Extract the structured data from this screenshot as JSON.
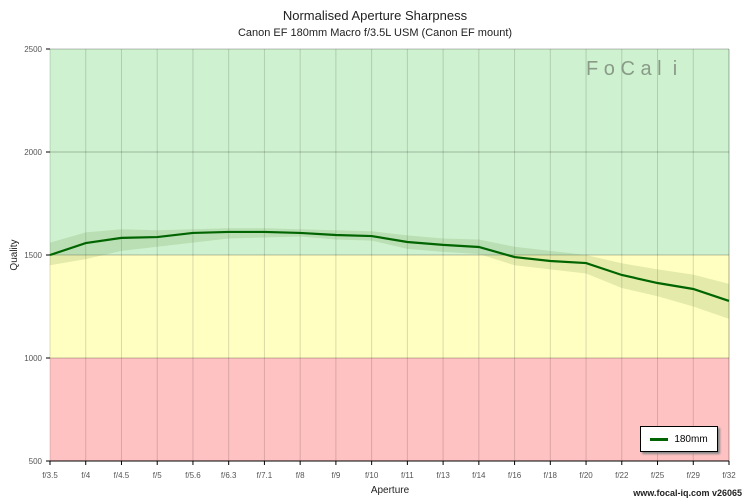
{
  "chart_data": {
    "type": "line",
    "title": "Normalised Aperture Sharpness",
    "subtitle": "Canon EF 180mm Macro f/3.5L USM (Canon EF mount)",
    "xlabel": "Aperture",
    "ylabel": "Quality",
    "ylim": [
      500,
      2500
    ],
    "yticks": [
      "2500",
      "2000",
      "1500",
      "1000",
      "500"
    ],
    "ytick_values": [
      2500,
      2000,
      1500,
      1000,
      500
    ],
    "categories": [
      "f/3.5",
      "f/4",
      "f/4.5",
      "f/5",
      "f/5.6",
      "f/6.3",
      "f/7.1",
      "f/8",
      "f/9",
      "f/10",
      "f/11",
      "f/13",
      "f/14",
      "f/16",
      "f/18",
      "f/20",
      "f/22",
      "f/25",
      "f/29",
      "f/32"
    ],
    "bands": [
      {
        "from": 1500,
        "to": 2500,
        "color": "#cef2cf"
      },
      {
        "from": 1000,
        "to": 1500,
        "color": "#ffffc2"
      },
      {
        "from": 500,
        "to": 1000,
        "color": "#ffc2c2"
      }
    ],
    "series": [
      {
        "name": "180mm",
        "color": "#006400",
        "values": [
          1500,
          1558,
          1583,
          1587,
          1607,
          1612,
          1612,
          1607,
          1597,
          1592,
          1563,
          1549,
          1539,
          1490,
          1471,
          1461,
          1403,
          1364,
          1335,
          1277
        ],
        "lower": [
          1450,
          1480,
          1520,
          1540,
          1560,
          1580,
          1585,
          1590,
          1575,
          1570,
          1530,
          1515,
          1505,
          1450,
          1430,
          1410,
          1340,
          1300,
          1250,
          1190
        ],
        "upper": [
          1560,
          1610,
          1625,
          1620,
          1625,
          1630,
          1630,
          1625,
          1620,
          1615,
          1595,
          1580,
          1575,
          1540,
          1520,
          1500,
          1460,
          1430,
          1405,
          1360
        ]
      }
    ],
    "legend": "bottom-right",
    "grid": true
  },
  "logo_text": "FoCal iQ",
  "watermark": "www.focal-iq.com  v26065"
}
